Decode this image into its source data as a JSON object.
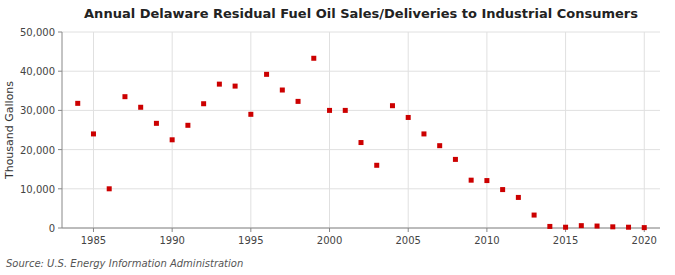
{
  "chart_data": {
    "type": "scatter",
    "title": "Annual Delaware Residual Fuel Oil Sales/Deliveries to Industrial Consumers",
    "ylabel": "Thousand Gallons",
    "annotation": "Source: U.S. Energy Information Administration",
    "color": "#cc0000",
    "marker": "square",
    "grid": true,
    "xlim": [
      1983,
      2021
    ],
    "ylim": [
      0,
      50000
    ],
    "xticks": [
      1985,
      1990,
      1995,
      2000,
      2005,
      2010,
      2015,
      2020
    ],
    "yticks": [
      0,
      {
        "value": 10000,
        "label": "10,000"
      },
      {
        "value": 20000,
        "label": "20,000"
      },
      {
        "value": 30000,
        "label": "30,000"
      },
      {
        "value": 40000,
        "label": "40,000"
      },
      {
        "value": 50000,
        "label": "50,000"
      }
    ],
    "x": [
      1984,
      1985,
      1986,
      1987,
      1988,
      1989,
      1990,
      1991,
      1992,
      1993,
      1994,
      1995,
      1996,
      1997,
      1998,
      1999,
      2000,
      2001,
      2002,
      2003,
      2004,
      2005,
      2006,
      2007,
      2008,
      2009,
      2010,
      2011,
      2012,
      2013,
      2014,
      2015,
      2016,
      2017,
      2018,
      2019,
      2020
    ],
    "values": [
      31800,
      24000,
      10000,
      33500,
      30800,
      26700,
      22500,
      26200,
      31700,
      36700,
      36200,
      29000,
      39200,
      35200,
      32300,
      43300,
      30000,
      30000,
      21800,
      16000,
      31200,
      28200,
      24000,
      21000,
      17500,
      12200,
      12100,
      9800,
      7800,
      3300,
      400,
      200,
      600,
      500,
      300,
      200,
      100
    ]
  }
}
